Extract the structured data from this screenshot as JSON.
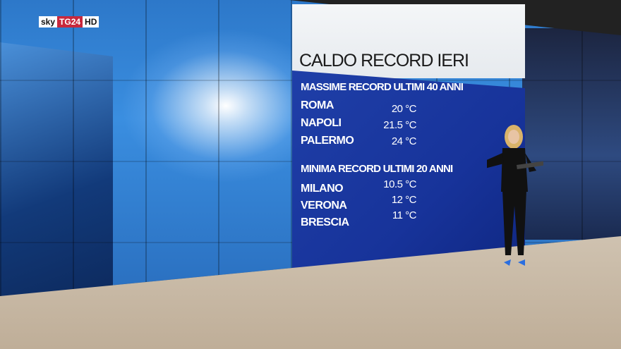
{
  "logo": {
    "brand": "sky",
    "channel": "TG24",
    "quality": "HD"
  },
  "graphic": {
    "title": "CALDO RECORD IERI",
    "sections": [
      {
        "heading": "MASSIME RECORD ULTIMI 40 ANNI",
        "rows": [
          {
            "city": "ROMA",
            "value": "20 °C"
          },
          {
            "city": "NAPOLI",
            "value": "21.5 °C"
          },
          {
            "city": "PALERMO",
            "value": "24 °C"
          }
        ]
      },
      {
        "heading": "MINIMA RECORD ULTIMI 20 ANNI",
        "rows": [
          {
            "city": "MILANO",
            "value": "10.5 °C"
          },
          {
            "city": "VERONA",
            "value": "12 °C"
          },
          {
            "city": "BRESCIA",
            "value": "11 °C"
          }
        ]
      }
    ]
  },
  "colors": {
    "panel_blue": "#1f3fa8",
    "logo_red": "#c8283c"
  }
}
